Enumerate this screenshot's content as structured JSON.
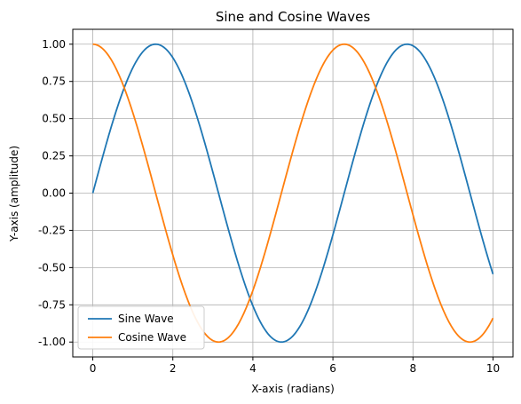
{
  "chart_data": {
    "type": "line",
    "title": "Sine and Cosine Waves",
    "xlabel": "X-axis (radians)",
    "ylabel": "Y-axis (amplitude)",
    "xlim": [
      -0.5,
      10.5
    ],
    "ylim": [
      -1.1,
      1.1
    ],
    "xticks": [
      0,
      2,
      4,
      6,
      8,
      10
    ],
    "xtick_labels": [
      "0",
      "2",
      "4",
      "6",
      "8",
      "10"
    ],
    "yticks": [
      -1.0,
      -0.75,
      -0.5,
      -0.25,
      0.0,
      0.25,
      0.5,
      0.75,
      1.0
    ],
    "ytick_labels": [
      "-1.00",
      "-0.75",
      "-0.50",
      "-0.25",
      "0.00",
      "0.25",
      "0.50",
      "0.75",
      "1.00"
    ],
    "grid": true,
    "legend_position": "lower-left",
    "series": [
      {
        "name": "Sine Wave",
        "color": "#1f77b4",
        "x": [
          0,
          0.5,
          1,
          1.5,
          2,
          2.5,
          3,
          3.5,
          4,
          4.5,
          5,
          5.5,
          6,
          6.5,
          7,
          7.5,
          8,
          8.5,
          9,
          9.5,
          10
        ],
        "y": [
          0.0,
          0.479,
          0.841,
          0.997,
          0.909,
          0.598,
          0.141,
          -0.351,
          -0.757,
          -0.978,
          -0.959,
          -0.706,
          -0.279,
          0.215,
          0.657,
          0.938,
          0.989,
          0.798,
          0.412,
          -0.075,
          -0.544
        ]
      },
      {
        "name": "Cosine Wave",
        "color": "#ff7f0e",
        "x": [
          0,
          0.5,
          1,
          1.5,
          2,
          2.5,
          3,
          3.5,
          4,
          4.5,
          5,
          5.5,
          6,
          6.5,
          7,
          7.5,
          8,
          8.5,
          9,
          9.5,
          10
        ],
        "y": [
          1.0,
          0.878,
          0.54,
          0.071,
          -0.416,
          -0.801,
          -0.99,
          -0.936,
          -0.654,
          -0.211,
          0.284,
          0.709,
          0.96,
          0.977,
          0.754,
          0.347,
          -0.146,
          -0.602,
          -0.911,
          -0.997,
          -0.839
        ]
      }
    ]
  }
}
